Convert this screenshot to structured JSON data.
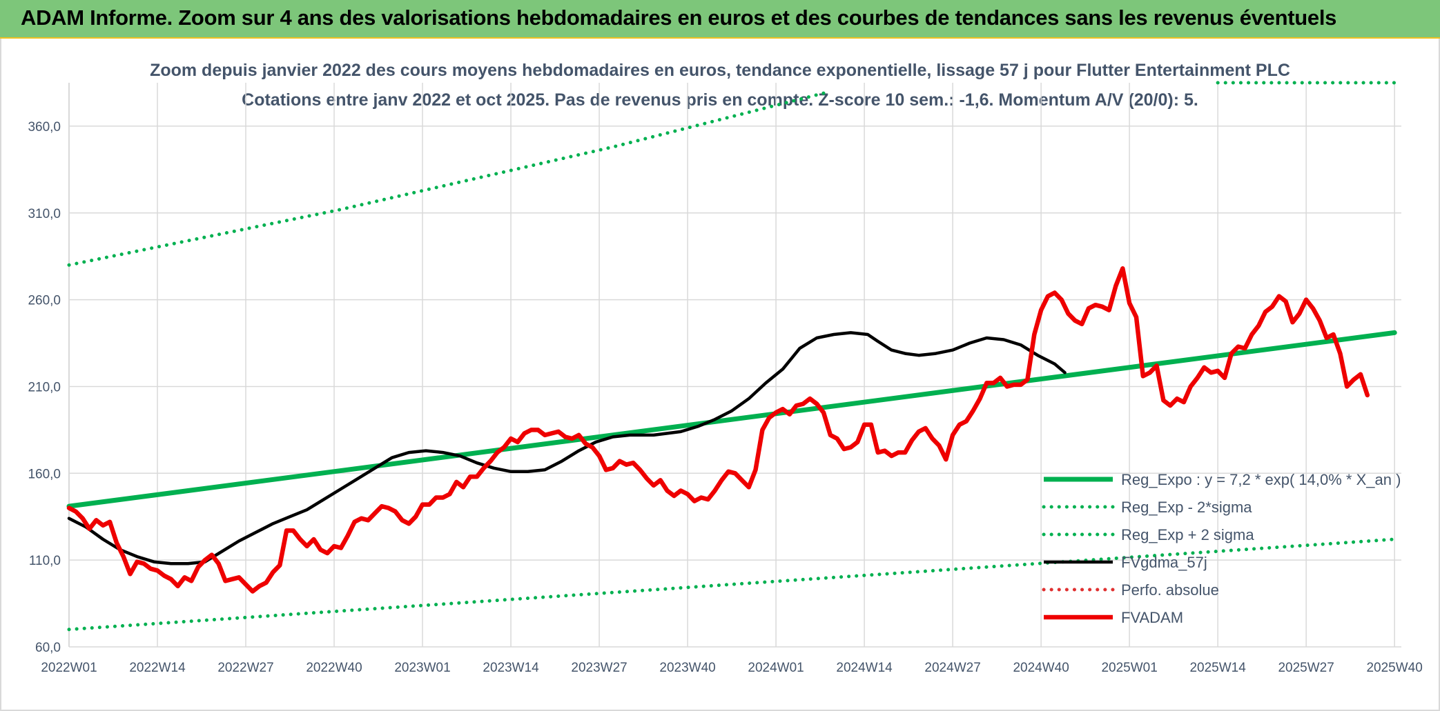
{
  "header": {
    "title": "ADAM Informe. Zoom sur 4 ans des valorisations hebdomadaires en euros et des courbes de tendances sans les revenus éventuels"
  },
  "colors": {
    "banner": "#7dc67a",
    "trend": "#00b050",
    "price": "#ee0000",
    "sma": "#000000",
    "perfo": "#e03030",
    "grid": "#d9d9d9",
    "text": "#44546a"
  },
  "chart_data": {
    "type": "line",
    "title": "Zoom depuis janvier 2022 des cours moyens hebdomadaires en euros, tendance exponentielle, lissage 57 j pour Flutter Entertainment PLC",
    "subtitle": "Cotations entre janv 2022 et oct 2025. Pas de revenus pris en compte. Z-score 10 sem.: -1,6. Momentum A/V (20/0): 5.",
    "ylim": [
      60,
      385
    ],
    "y_ticks": [
      "60,0",
      "110,0",
      "160,0",
      "210,0",
      "260,0",
      "310,0",
      "360,0"
    ],
    "y_tick_values": [
      60,
      110,
      160,
      210,
      260,
      310,
      360
    ],
    "x_ticks": [
      "2022W01",
      "2022W14",
      "2022W27",
      "2022W40",
      "2023W01",
      "2023W14",
      "2023W27",
      "2023W40",
      "2024W01",
      "2024W14",
      "2024W27",
      "2024W40",
      "2025W01",
      "2025W14",
      "2025W27",
      "2025W40"
    ],
    "weeks_total": 196,
    "grid": "vertical-and-horizontal",
    "legend_position": "right",
    "series": [
      {
        "name": "Reg_Expo : y = 7,2 * exp( 14,0% *  X_an )",
        "style": "solid-thick",
        "color": "#00b050",
        "points": [
          [
            0,
            141
          ],
          [
            195,
            241
          ]
        ]
      },
      {
        "name": "Reg_Exp - 2*sigma",
        "style": "dotted",
        "color": "#00b050",
        "points": [
          [
            0,
            70
          ],
          [
            195,
            122
          ]
        ]
      },
      {
        "name": "Reg_Exp + 2 sigma",
        "style": "dotted",
        "color": "#00b050",
        "points": [
          [
            0,
            280
          ],
          [
            40,
            312
          ],
          [
            80,
            348
          ],
          [
            104,
            372
          ],
          [
            112,
            380
          ]
        ],
        "offscreen_segment": [
          [
            169,
            385
          ],
          [
            195,
            385
          ]
        ]
      },
      {
        "name": "FVgdma_57j",
        "style": "solid",
        "color": "#000000",
        "points": [
          [
            0,
            134
          ],
          [
            5,
            129
          ],
          [
            10,
            122
          ],
          [
            15,
            116
          ],
          [
            20,
            112
          ],
          [
            25,
            109
          ],
          [
            30,
            108
          ],
          [
            35,
            108
          ],
          [
            40,
            109
          ],
          [
            45,
            115
          ],
          [
            50,
            121
          ],
          [
            55,
            126
          ],
          [
            60,
            131
          ],
          [
            65,
            135
          ],
          [
            70,
            139
          ],
          [
            75,
            145
          ],
          [
            80,
            151
          ],
          [
            85,
            157
          ],
          [
            90,
            163
          ],
          [
            95,
            169
          ],
          [
            100,
            172
          ],
          [
            105,
            173
          ],
          [
            110,
            172
          ],
          [
            115,
            170
          ],
          [
            120,
            166
          ],
          [
            125,
            163
          ],
          [
            130,
            161
          ],
          [
            135,
            161
          ],
          [
            140,
            162
          ],
          [
            145,
            167
          ],
          [
            150,
            173
          ],
          [
            155,
            178
          ],
          [
            160,
            181
          ],
          [
            165,
            182
          ],
          [
            168,
            182
          ],
          [
            172,
            182
          ],
          [
            176,
            183
          ],
          [
            180,
            184
          ],
          [
            185,
            187
          ],
          [
            190,
            191
          ],
          [
            195,
            196
          ],
          [
            200,
            203
          ],
          [
            205,
            212
          ],
          [
            210,
            220
          ],
          [
            215,
            232
          ],
          [
            220,
            238
          ],
          [
            225,
            240
          ],
          [
            230,
            241
          ],
          [
            235,
            240
          ],
          [
            238,
            236
          ],
          [
            242,
            231
          ],
          [
            246,
            229
          ],
          [
            250,
            228
          ],
          [
            255,
            229
          ],
          [
            260,
            231
          ],
          [
            265,
            235
          ],
          [
            270,
            238
          ],
          [
            275,
            237
          ],
          [
            280,
            234
          ],
          [
            285,
            228
          ],
          [
            290,
            223
          ],
          [
            293,
            218
          ]
        ]
      },
      {
        "name": "Perfo. absolue",
        "style": "dotted",
        "color": "#e03030",
        "points": []
      },
      {
        "name": "FVADAM",
        "style": "solid-thick",
        "color": "#ee0000",
        "points": [
          [
            0,
            140
          ],
          [
            2,
            138
          ],
          [
            4,
            134
          ],
          [
            6,
            128
          ],
          [
            8,
            133
          ],
          [
            10,
            130
          ],
          [
            12,
            132
          ],
          [
            14,
            120
          ],
          [
            16,
            112
          ],
          [
            18,
            102
          ],
          [
            20,
            109
          ],
          [
            22,
            108
          ],
          [
            24,
            105
          ],
          [
            26,
            104
          ],
          [
            28,
            101
          ],
          [
            30,
            99
          ],
          [
            32,
            95
          ],
          [
            34,
            100
          ],
          [
            36,
            98
          ],
          [
            38,
            106
          ],
          [
            40,
            110
          ],
          [
            42,
            113
          ],
          [
            44,
            108
          ],
          [
            46,
            98
          ],
          [
            48,
            99
          ],
          [
            50,
            100
          ],
          [
            52,
            96
          ],
          [
            54,
            92
          ],
          [
            56,
            95
          ],
          [
            58,
            97
          ],
          [
            60,
            103
          ],
          [
            62,
            107
          ],
          [
            64,
            127
          ],
          [
            66,
            127
          ],
          [
            68,
            122
          ],
          [
            70,
            118
          ],
          [
            72,
            122
          ],
          [
            74,
            116
          ],
          [
            76,
            114
          ],
          [
            78,
            118
          ],
          [
            80,
            117
          ],
          [
            82,
            124
          ],
          [
            84,
            132
          ],
          [
            86,
            134
          ],
          [
            88,
            133
          ],
          [
            90,
            137
          ],
          [
            92,
            141
          ],
          [
            94,
            140
          ],
          [
            96,
            138
          ],
          [
            98,
            133
          ],
          [
            100,
            131
          ],
          [
            102,
            135
          ],
          [
            104,
            142
          ],
          [
            106,
            142
          ],
          [
            108,
            146
          ],
          [
            110,
            146
          ],
          [
            112,
            148
          ],
          [
            114,
            155
          ],
          [
            116,
            152
          ],
          [
            118,
            158
          ],
          [
            120,
            158
          ],
          [
            122,
            163
          ],
          [
            124,
            167
          ],
          [
            126,
            172
          ],
          [
            128,
            175
          ],
          [
            130,
            180
          ],
          [
            132,
            178
          ],
          [
            134,
            183
          ],
          [
            136,
            185
          ],
          [
            138,
            185
          ],
          [
            140,
            182
          ],
          [
            142,
            183
          ],
          [
            144,
            184
          ],
          [
            146,
            181
          ],
          [
            148,
            180
          ],
          [
            150,
            182
          ],
          [
            152,
            177
          ],
          [
            154,
            175
          ],
          [
            156,
            170
          ],
          [
            158,
            162
          ],
          [
            160,
            163
          ],
          [
            162,
            167
          ],
          [
            164,
            165
          ],
          [
            166,
            166
          ],
          [
            168,
            162
          ],
          [
            170,
            157
          ],
          [
            172,
            153
          ],
          [
            174,
            156
          ],
          [
            176,
            150
          ],
          [
            178,
            147
          ],
          [
            180,
            150
          ],
          [
            182,
            148
          ],
          [
            184,
            144
          ],
          [
            186,
            146
          ],
          [
            188,
            145
          ],
          [
            190,
            150
          ],
          [
            192,
            156
          ],
          [
            194,
            161
          ],
          [
            196,
            160
          ],
          [
            198,
            156
          ],
          [
            200,
            152
          ],
          [
            202,
            162
          ],
          [
            204,
            185
          ],
          [
            206,
            192
          ],
          [
            208,
            195
          ],
          [
            210,
            197
          ],
          [
            212,
            194
          ],
          [
            214,
            199
          ],
          [
            216,
            200
          ],
          [
            218,
            203
          ],
          [
            220,
            200
          ],
          [
            222,
            195
          ],
          [
            224,
            182
          ],
          [
            226,
            180
          ],
          [
            228,
            174
          ],
          [
            230,
            175
          ],
          [
            232,
            178
          ],
          [
            234,
            188
          ],
          [
            236,
            188
          ],
          [
            238,
            172
          ],
          [
            240,
            173
          ],
          [
            242,
            170
          ],
          [
            244,
            172
          ],
          [
            246,
            172
          ],
          [
            248,
            179
          ],
          [
            250,
            184
          ],
          [
            252,
            186
          ],
          [
            254,
            180
          ],
          [
            256,
            176
          ],
          [
            258,
            168
          ],
          [
            260,
            182
          ],
          [
            262,
            188
          ],
          [
            264,
            190
          ],
          [
            266,
            196
          ],
          [
            268,
            203
          ],
          [
            270,
            212
          ],
          [
            272,
            212
          ],
          [
            274,
            215
          ],
          [
            276,
            210
          ],
          [
            278,
            211
          ],
          [
            280,
            211
          ],
          [
            282,
            214
          ],
          [
            284,
            240
          ],
          [
            286,
            254
          ],
          [
            288,
            262
          ],
          [
            290,
            264
          ],
          [
            292,
            260
          ],
          [
            294,
            252
          ],
          [
            296,
            248
          ],
          [
            298,
            246
          ],
          [
            300,
            255
          ],
          [
            302,
            257
          ],
          [
            304,
            256
          ],
          [
            306,
            254
          ],
          [
            308,
            268
          ],
          [
            310,
            278
          ],
          [
            312,
            258
          ],
          [
            314,
            250
          ],
          [
            316,
            216
          ],
          [
            318,
            218
          ],
          [
            320,
            222
          ],
          [
            322,
            202
          ],
          [
            324,
            199
          ],
          [
            326,
            203
          ],
          [
            328,
            201
          ],
          [
            330,
            210
          ],
          [
            332,
            215
          ],
          [
            334,
            221
          ],
          [
            336,
            218
          ],
          [
            338,
            219
          ],
          [
            340,
            215
          ],
          [
            342,
            229
          ],
          [
            344,
            233
          ],
          [
            346,
            232
          ],
          [
            348,
            240
          ],
          [
            350,
            245
          ],
          [
            352,
            253
          ],
          [
            354,
            256
          ],
          [
            356,
            262
          ],
          [
            358,
            259
          ],
          [
            360,
            247
          ],
          [
            362,
            252
          ],
          [
            364,
            260
          ],
          [
            366,
            255
          ],
          [
            368,
            248
          ],
          [
            370,
            238
          ],
          [
            372,
            240
          ],
          [
            374,
            229
          ],
          [
            376,
            210
          ],
          [
            378,
            214
          ],
          [
            380,
            217
          ],
          [
            382,
            205
          ]
        ]
      }
    ]
  }
}
